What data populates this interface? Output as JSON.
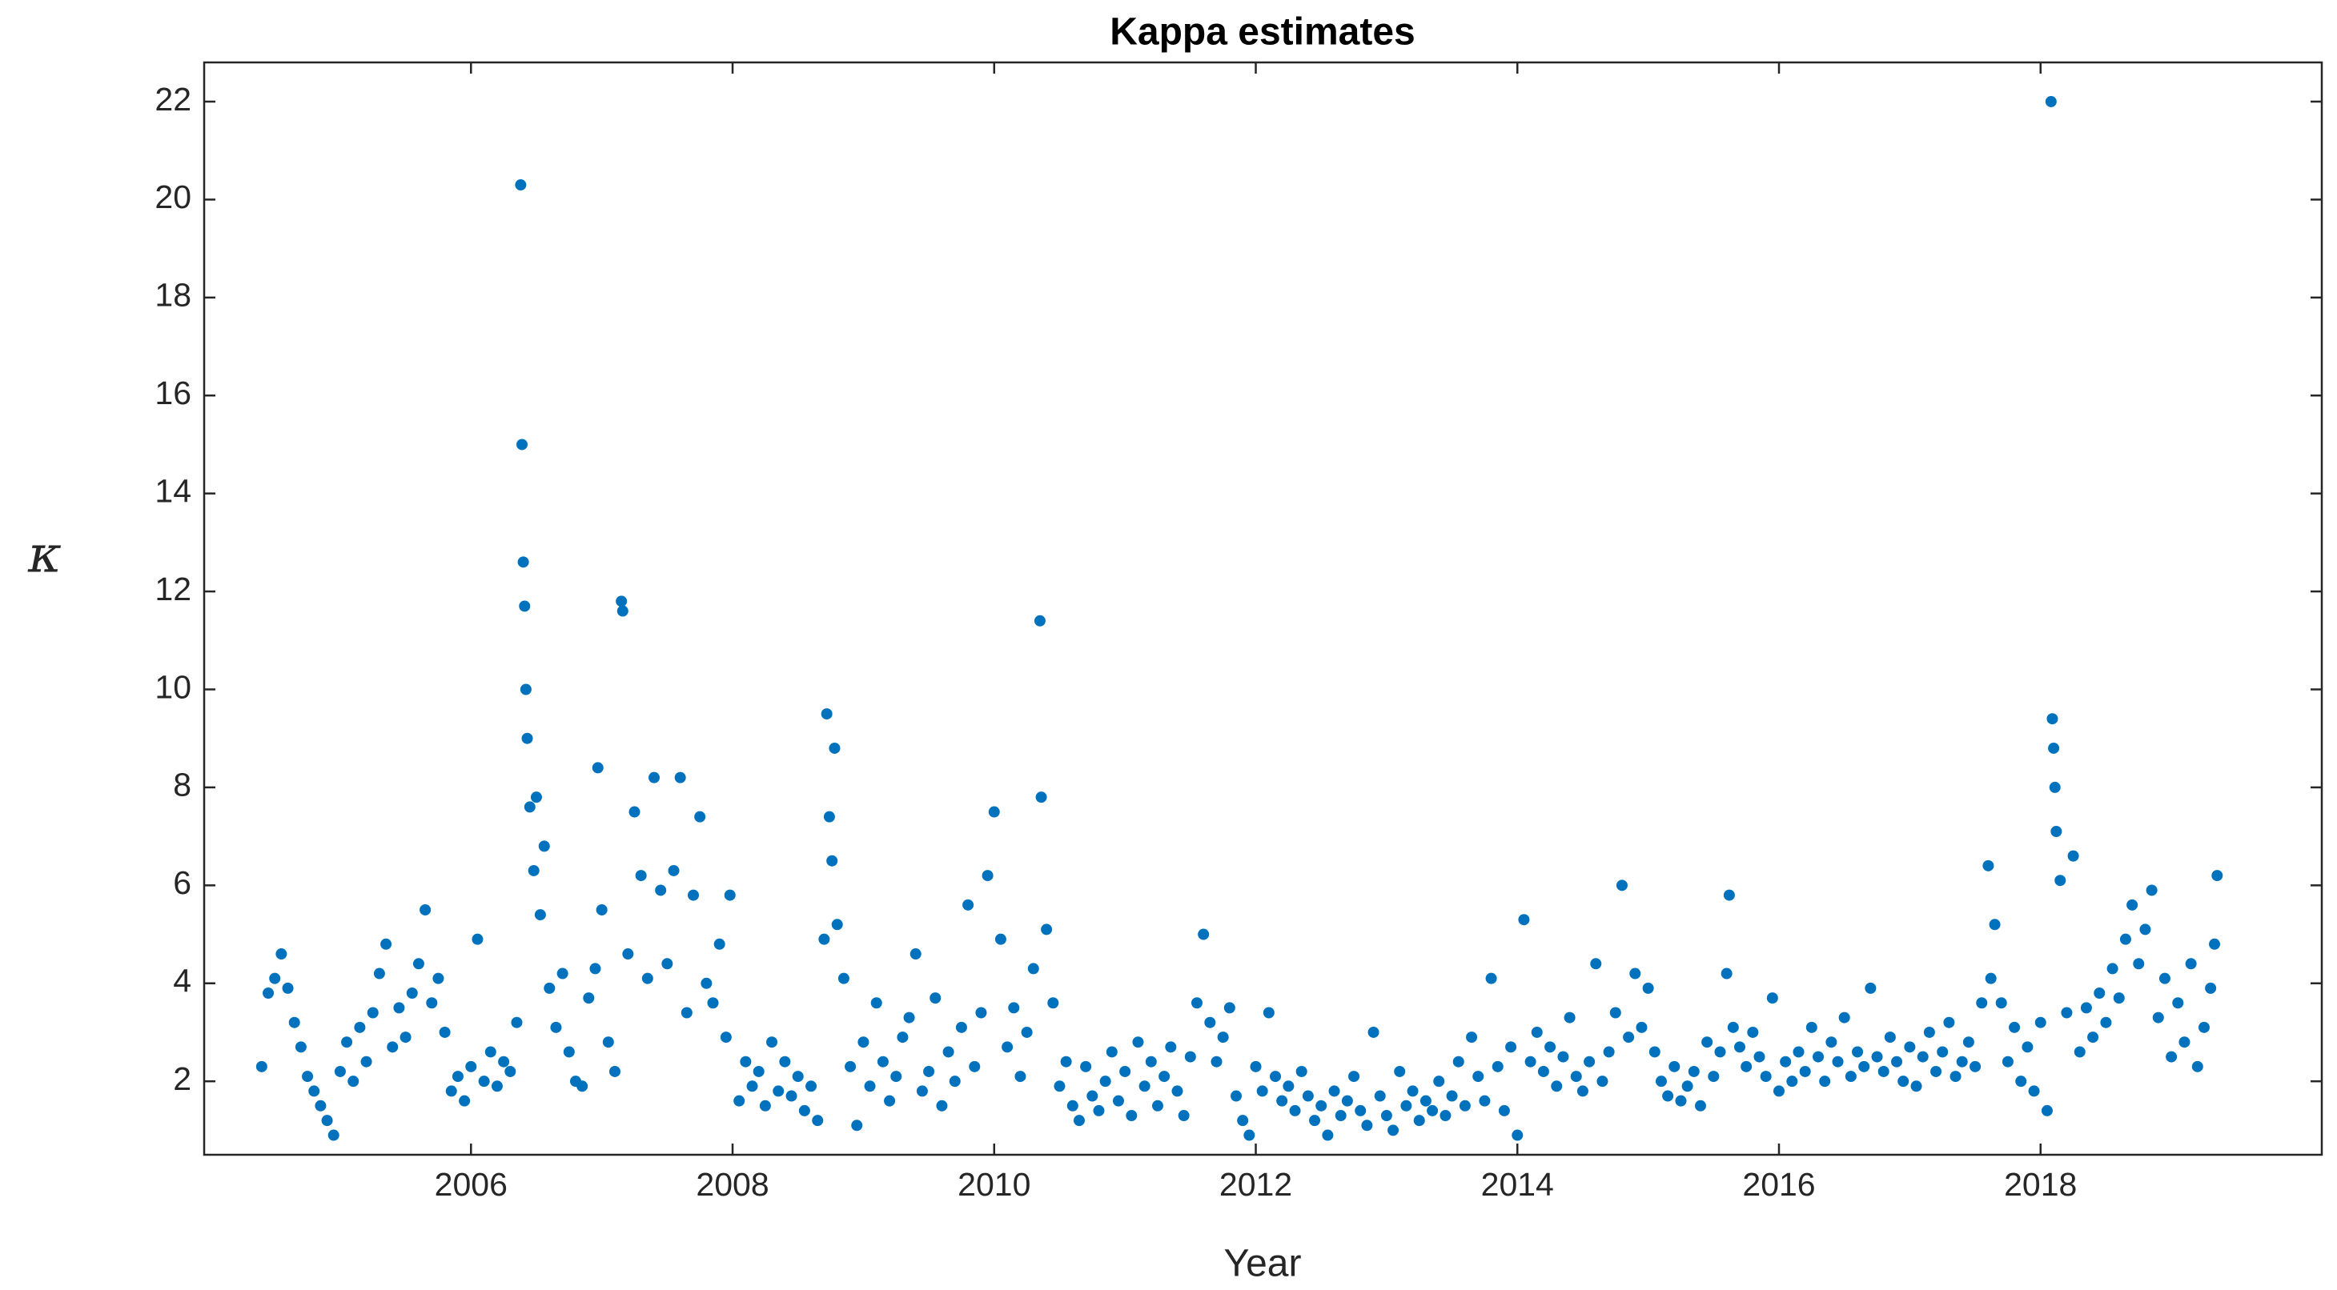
{
  "chart_data": {
    "type": "scatter",
    "title": "Kappa estimates",
    "xlabel": "Year",
    "ylabel": "κ",
    "color": "#0072bd",
    "xlim": [
      2003.96,
      2020.15
    ],
    "xticks": [
      2006,
      2008,
      2010,
      2012,
      2014,
      2016,
      2018
    ],
    "ylim": [
      0.5,
      22.8
    ],
    "yticks": [
      2,
      4,
      6,
      8,
      10,
      12,
      14,
      16,
      18,
      20,
      22
    ],
    "x": [
      2004.4,
      2004.45,
      2004.5,
      2004.55,
      2004.6,
      2004.65,
      2004.7,
      2004.75,
      2004.8,
      2004.85,
      2004.9,
      2004.95,
      2005.0,
      2005.05,
      2005.1,
      2005.15,
      2005.2,
      2005.25,
      2005.3,
      2005.35,
      2005.4,
      2005.45,
      2005.5,
      2005.55,
      2005.6,
      2005.65,
      2005.7,
      2005.75,
      2005.8,
      2005.85,
      2005.9,
      2005.95,
      2006.0,
      2006.05,
      2006.1,
      2006.15,
      2006.2,
      2006.25,
      2006.3,
      2006.35,
      2006.38,
      2006.39,
      2006.4,
      2006.41,
      2006.42,
      2006.43,
      2006.45,
      2006.48,
      2006.5,
      2006.53,
      2006.56,
      2006.6,
      2006.65,
      2006.7,
      2006.75,
      2006.8,
      2006.85,
      2006.9,
      2006.95,
      2006.97,
      2007.0,
      2007.05,
      2007.1,
      2007.15,
      2007.16,
      2007.2,
      2007.25,
      2007.3,
      2007.35,
      2007.4,
      2007.45,
      2007.5,
      2007.55,
      2007.6,
      2007.65,
      2007.7,
      2007.75,
      2007.8,
      2007.85,
      2007.9,
      2007.95,
      2007.98,
      2008.05,
      2008.1,
      2008.15,
      2008.2,
      2008.25,
      2008.3,
      2008.35,
      2008.4,
      2008.45,
      2008.5,
      2008.55,
      2008.6,
      2008.65,
      2008.7,
      2008.72,
      2008.74,
      2008.76,
      2008.78,
      2008.8,
      2008.85,
      2008.9,
      2008.95,
      2009.0,
      2009.05,
      2009.1,
      2009.15,
      2009.2,
      2009.25,
      2009.3,
      2009.35,
      2009.4,
      2009.45,
      2009.5,
      2009.55,
      2009.6,
      2009.65,
      2009.7,
      2009.75,
      2009.8,
      2009.85,
      2009.9,
      2009.95,
      2010.0,
      2010.05,
      2010.1,
      2010.15,
      2010.2,
      2010.25,
      2010.3,
      2010.35,
      2010.36,
      2010.4,
      2010.45,
      2010.5,
      2010.55,
      2010.6,
      2010.65,
      2010.7,
      2010.75,
      2010.8,
      2010.85,
      2010.9,
      2010.95,
      2011.0,
      2011.05,
      2011.1,
      2011.15,
      2011.2,
      2011.25,
      2011.3,
      2011.35,
      2011.4,
      2011.45,
      2011.5,
      2011.55,
      2011.6,
      2011.65,
      2011.7,
      2011.75,
      2011.8,
      2011.85,
      2011.9,
      2011.95,
      2012.0,
      2012.05,
      2012.1,
      2012.15,
      2012.2,
      2012.25,
      2012.3,
      2012.35,
      2012.4,
      2012.45,
      2012.5,
      2012.55,
      2012.6,
      2012.65,
      2012.7,
      2012.75,
      2012.8,
      2012.85,
      2012.9,
      2012.95,
      2013.0,
      2013.05,
      2013.1,
      2013.15,
      2013.2,
      2013.25,
      2013.3,
      2013.35,
      2013.4,
      2013.45,
      2013.5,
      2013.55,
      2013.6,
      2013.65,
      2013.7,
      2013.75,
      2013.8,
      2013.85,
      2013.9,
      2013.95,
      2014.0,
      2014.05,
      2014.1,
      2014.15,
      2014.2,
      2014.25,
      2014.3,
      2014.35,
      2014.4,
      2014.45,
      2014.5,
      2014.55,
      2014.6,
      2014.65,
      2014.7,
      2014.75,
      2014.8,
      2014.85,
      2014.9,
      2014.95,
      2015.0,
      2015.05,
      2015.1,
      2015.15,
      2015.2,
      2015.25,
      2015.3,
      2015.35,
      2015.4,
      2015.45,
      2015.5,
      2015.55,
      2015.6,
      2015.62,
      2015.65,
      2015.7,
      2015.75,
      2015.8,
      2015.85,
      2015.9,
      2015.95,
      2016.0,
      2016.05,
      2016.1,
      2016.15,
      2016.2,
      2016.25,
      2016.3,
      2016.35,
      2016.4,
      2016.45,
      2016.5,
      2016.55,
      2016.6,
      2016.65,
      2016.7,
      2016.75,
      2016.8,
      2016.85,
      2016.9,
      2016.95,
      2017.0,
      2017.05,
      2017.1,
      2017.15,
      2017.2,
      2017.25,
      2017.3,
      2017.35,
      2017.4,
      2017.45,
      2017.5,
      2017.55,
      2017.6,
      2017.62,
      2017.65,
      2017.7,
      2017.75,
      2017.8,
      2017.85,
      2017.9,
      2017.95,
      2018.0,
      2018.05,
      2018.08,
      2018.09,
      2018.1,
      2018.11,
      2018.12,
      2018.15,
      2018.2,
      2018.25,
      2018.3,
      2018.35,
      2018.4,
      2018.45,
      2018.5,
      2018.55,
      2018.6,
      2018.65,
      2018.7,
      2018.75,
      2018.8,
      2018.85,
      2018.9,
      2018.95,
      2019.0,
      2019.05,
      2019.1,
      2019.15,
      2019.2,
      2019.25,
      2019.3,
      2019.33,
      2019.35
    ],
    "values": [
      2.3,
      3.8,
      4.1,
      4.6,
      3.9,
      3.2,
      2.7,
      2.1,
      1.8,
      1.5,
      1.2,
      0.9,
      2.2,
      2.8,
      2.0,
      3.1,
      2.4,
      3.4,
      4.2,
      4.8,
      2.7,
      3.5,
      2.9,
      3.8,
      4.4,
      5.5,
      3.6,
      4.1,
      3.0,
      1.8,
      2.1,
      1.6,
      2.3,
      4.9,
      2.0,
      2.6,
      1.9,
      2.4,
      2.2,
      3.2,
      20.3,
      15.0,
      12.6,
      11.7,
      10.0,
      9.0,
      7.6,
      6.3,
      7.8,
      5.4,
      6.8,
      3.9,
      3.1,
      4.2,
      2.6,
      2.0,
      1.9,
      3.7,
      4.3,
      8.4,
      5.5,
      2.8,
      2.2,
      11.8,
      11.6,
      4.6,
      7.5,
      6.2,
      4.1,
      8.2,
      5.9,
      4.4,
      6.3,
      8.2,
      3.4,
      5.8,
      7.4,
      4.0,
      3.6,
      4.8,
      2.9,
      5.8,
      1.6,
      2.4,
      1.9,
      2.2,
      1.5,
      2.8,
      1.8,
      2.4,
      1.7,
      2.1,
      1.4,
      1.9,
      1.2,
      4.9,
      9.5,
      7.4,
      6.5,
      8.8,
      5.2,
      4.1,
      2.3,
      1.1,
      2.8,
      1.9,
      3.6,
      2.4,
      1.6,
      2.1,
      2.9,
      3.3,
      4.6,
      1.8,
      2.2,
      3.7,
      1.5,
      2.6,
      2.0,
      3.1,
      5.6,
      2.3,
      3.4,
      6.2,
      7.5,
      4.9,
      2.7,
      3.5,
      2.1,
      3.0,
      4.3,
      11.4,
      7.8,
      5.1,
      3.6,
      1.9,
      2.4,
      1.5,
      1.2,
      2.3,
      1.7,
      1.4,
      2.0,
      2.6,
      1.6,
      2.2,
      1.3,
      2.8,
      1.9,
      2.4,
      1.5,
      2.1,
      2.7,
      1.8,
      1.3,
      2.5,
      3.6,
      5.0,
      3.2,
      2.4,
      2.9,
      3.5,
      1.7,
      1.2,
      0.9,
      2.3,
      1.8,
      3.4,
      2.1,
      1.6,
      1.9,
      1.4,
      2.2,
      1.7,
      1.2,
      1.5,
      0.9,
      1.8,
      1.3,
      1.6,
      2.1,
      1.4,
      1.1,
      3.0,
      1.7,
      1.3,
      1.0,
      2.2,
      1.5,
      1.8,
      1.2,
      1.6,
      1.4,
      2.0,
      1.3,
      1.7,
      2.4,
      1.5,
      2.9,
      2.1,
      1.6,
      4.1,
      2.3,
      1.4,
      2.7,
      0.9,
      5.3,
      2.4,
      3.0,
      2.2,
      2.7,
      1.9,
      2.5,
      3.3,
      2.1,
      1.8,
      2.4,
      4.4,
      2.0,
      2.6,
      3.4,
      6.0,
      2.9,
      4.2,
      3.1,
      3.9,
      2.6,
      2.0,
      1.7,
      2.3,
      1.6,
      1.9,
      2.2,
      1.5,
      2.8,
      2.1,
      2.6,
      4.2,
      5.8,
      3.1,
      2.7,
      2.3,
      3.0,
      2.5,
      2.1,
      3.7,
      1.8,
      2.4,
      2.0,
      2.6,
      2.2,
      3.1,
      2.5,
      2.0,
      2.8,
      2.4,
      3.3,
      2.1,
      2.6,
      2.3,
      3.9,
      2.5,
      2.2,
      2.9,
      2.4,
      2.0,
      2.7,
      1.9,
      2.5,
      3.0,
      2.2,
      2.6,
      3.2,
      2.1,
      2.4,
      2.8,
      2.3,
      3.6,
      6.4,
      4.1,
      5.2,
      3.6,
      2.4,
      3.1,
      2.0,
      2.7,
      1.8,
      3.2,
      1.4,
      22.0,
      9.4,
      8.8,
      8.0,
      7.1,
      6.1,
      3.4,
      6.6,
      2.6,
      3.5,
      2.9,
      3.8,
      3.2,
      4.3,
      3.7,
      4.9,
      5.6,
      4.4,
      5.1,
      5.9,
      3.3,
      4.1,
      2.5,
      3.6,
      2.8,
      4.4,
      2.3,
      3.1,
      3.9,
      4.8,
      6.2
    ]
  }
}
